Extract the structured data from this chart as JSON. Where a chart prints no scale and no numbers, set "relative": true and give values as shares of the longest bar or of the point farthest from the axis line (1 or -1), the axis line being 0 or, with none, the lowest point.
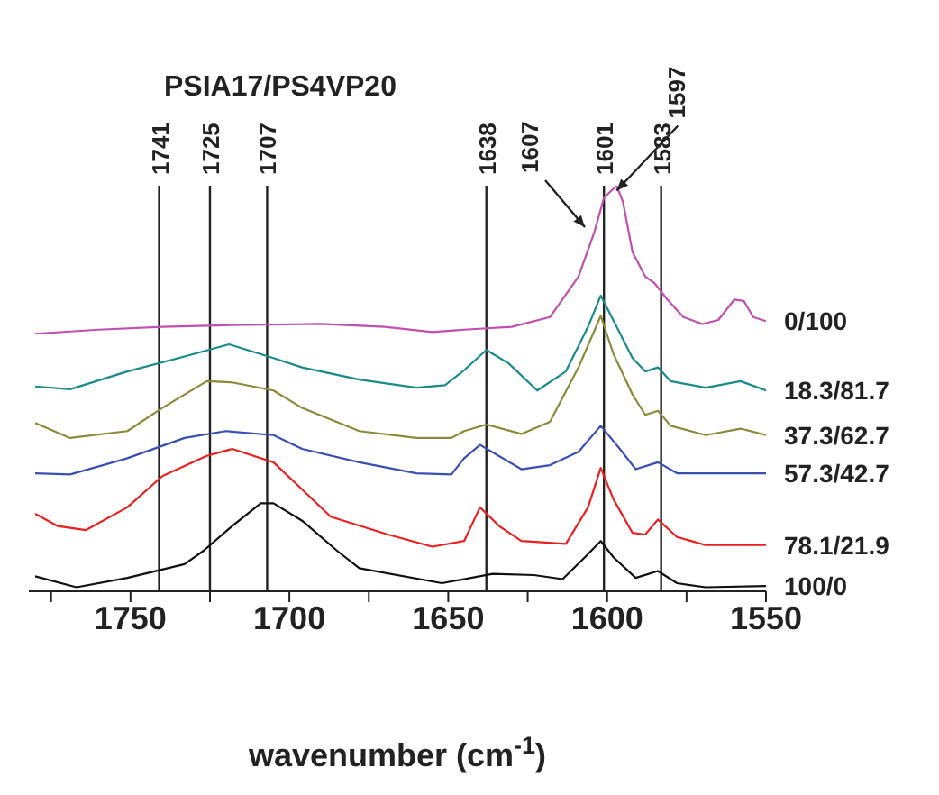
{
  "chart_data": {
    "type": "line",
    "title": "PSIA17/PS4VP20",
    "xlabel": "wavenumber (cm$^{-1}$)",
    "relative": true,
    "xlim": [
      1782,
      1550
    ],
    "xticks": [
      {
        "value": 1775,
        "label": null
      },
      1750,
      {
        "value": 1725,
        "label": null
      },
      1700,
      {
        "value": 1675,
        "label": null
      },
      1650,
      {
        "value": 1625,
        "label": null
      },
      1600,
      {
        "value": 1575,
        "label": null
      },
      1550
    ],
    "series": [
      {
        "name": "0/100",
        "color": "#c050b0",
        "x": [
          1780,
          1760,
          1740,
          1720,
          1690,
          1670,
          1655,
          1645,
          1630,
          1618,
          1609,
          1604,
          1601,
          1597,
          1595,
          1592,
          1588,
          1585,
          1581,
          1576,
          1570,
          1565,
          1560,
          1557,
          1554,
          1550
        ],
        "values": [
          0.635,
          0.645,
          0.652,
          0.656,
          0.659,
          0.652,
          0.639,
          0.645,
          0.652,
          0.676,
          0.776,
          0.886,
          0.97,
          1.0,
          0.96,
          0.836,
          0.776,
          0.759,
          0.719,
          0.676,
          0.659,
          0.669,
          0.719,
          0.716,
          0.676,
          0.666
        ]
      },
      {
        "name": "18.3/81.7",
        "color": "#1a8a8a",
        "x": [
          1780,
          1769,
          1751,
          1733,
          1719,
          1705,
          1696,
          1678,
          1660,
          1651,
          1645,
          1638,
          1631,
          1622,
          1613,
          1606,
          1602,
          1597,
          1592,
          1588,
          1584,
          1580,
          1569,
          1558,
          1550
        ],
        "values": [
          0.505,
          0.498,
          0.542,
          0.579,
          0.609,
          0.575,
          0.552,
          0.522,
          0.502,
          0.508,
          0.545,
          0.595,
          0.562,
          0.495,
          0.542,
          0.652,
          0.729,
          0.652,
          0.575,
          0.542,
          0.552,
          0.518,
          0.502,
          0.518,
          0.495
        ]
      },
      {
        "name": "37.3/62.7",
        "color": "#8a8a3a",
        "x": [
          1780,
          1769,
          1751,
          1740,
          1726,
          1718,
          1705,
          1696,
          1678,
          1660,
          1649,
          1645,
          1638,
          1627,
          1618,
          1609,
          1602,
          1598,
          1592,
          1588,
          1584,
          1580,
          1569,
          1558,
          1550
        ],
        "values": [
          0.415,
          0.378,
          0.395,
          0.452,
          0.518,
          0.515,
          0.495,
          0.452,
          0.395,
          0.378,
          0.378,
          0.395,
          0.411,
          0.388,
          0.418,
          0.552,
          0.679,
          0.585,
          0.485,
          0.435,
          0.445,
          0.408,
          0.385,
          0.401,
          0.385
        ]
      },
      {
        "name": "57.3/42.7",
        "color": "#3a50b0",
        "x": [
          1780,
          1769,
          1751,
          1733,
          1720,
          1705,
          1696,
          1678,
          1660,
          1649,
          1645,
          1640,
          1627,
          1618,
          1609,
          1602,
          1596,
          1591,
          1584,
          1578,
          1550
        ],
        "values": [
          0.291,
          0.288,
          0.328,
          0.378,
          0.395,
          0.385,
          0.351,
          0.318,
          0.291,
          0.288,
          0.328,
          0.361,
          0.301,
          0.311,
          0.344,
          0.408,
          0.351,
          0.301,
          0.318,
          0.291,
          0.291
        ]
      },
      {
        "name": "78.1/21.9",
        "color": "#e82020",
        "x": [
          1780,
          1773,
          1764,
          1751,
          1740,
          1726,
          1718,
          1705,
          1696,
          1687,
          1669,
          1655,
          1645,
          1640,
          1634,
          1627,
          1613,
          1606,
          1602,
          1598,
          1592,
          1588,
          1584,
          1578,
          1569,
          1550
        ],
        "values": [
          0.191,
          0.161,
          0.151,
          0.207,
          0.284,
          0.334,
          0.351,
          0.318,
          0.251,
          0.184,
          0.14,
          0.11,
          0.124,
          0.207,
          0.161,
          0.124,
          0.117,
          0.207,
          0.304,
          0.227,
          0.144,
          0.14,
          0.177,
          0.134,
          0.114,
          0.114
        ]
      },
      {
        "name": "100/0",
        "color": "#111111",
        "x": [
          1780,
          1767,
          1751,
          1733,
          1727,
          1718,
          1709,
          1705,
          1696,
          1685,
          1678,
          1652,
          1636,
          1623,
          1614,
          1607,
          1602,
          1598,
          1591,
          1584,
          1578,
          1569,
          1550
        ],
        "values": [
          0.037,
          0.01,
          0.033,
          0.067,
          0.1,
          0.161,
          0.217,
          0.217,
          0.174,
          0.1,
          0.057,
          0.02,
          0.043,
          0.04,
          0.03,
          0.084,
          0.124,
          0.084,
          0.033,
          0.05,
          0.02,
          0.01,
          0.013
        ]
      }
    ],
    "ref_lines": [
      {
        "axis": "x",
        "value": 1741,
        "label": "1741"
      },
      {
        "axis": "x",
        "value": 1725,
        "label": "1725"
      },
      {
        "axis": "x",
        "value": 1707,
        "label": "1707"
      },
      {
        "axis": "x",
        "value": 1638,
        "label": "1638"
      },
      {
        "axis": "x",
        "value": 1601,
        "label": "1601"
      },
      {
        "axis": "x",
        "value": 1583,
        "label": "1583"
      }
    ],
    "annotations": [
      {
        "text": "1607",
        "x": 1607,
        "y": 0.88
      },
      {
        "text": "1597",
        "x": 1597,
        "y": 0.97
      }
    ]
  }
}
